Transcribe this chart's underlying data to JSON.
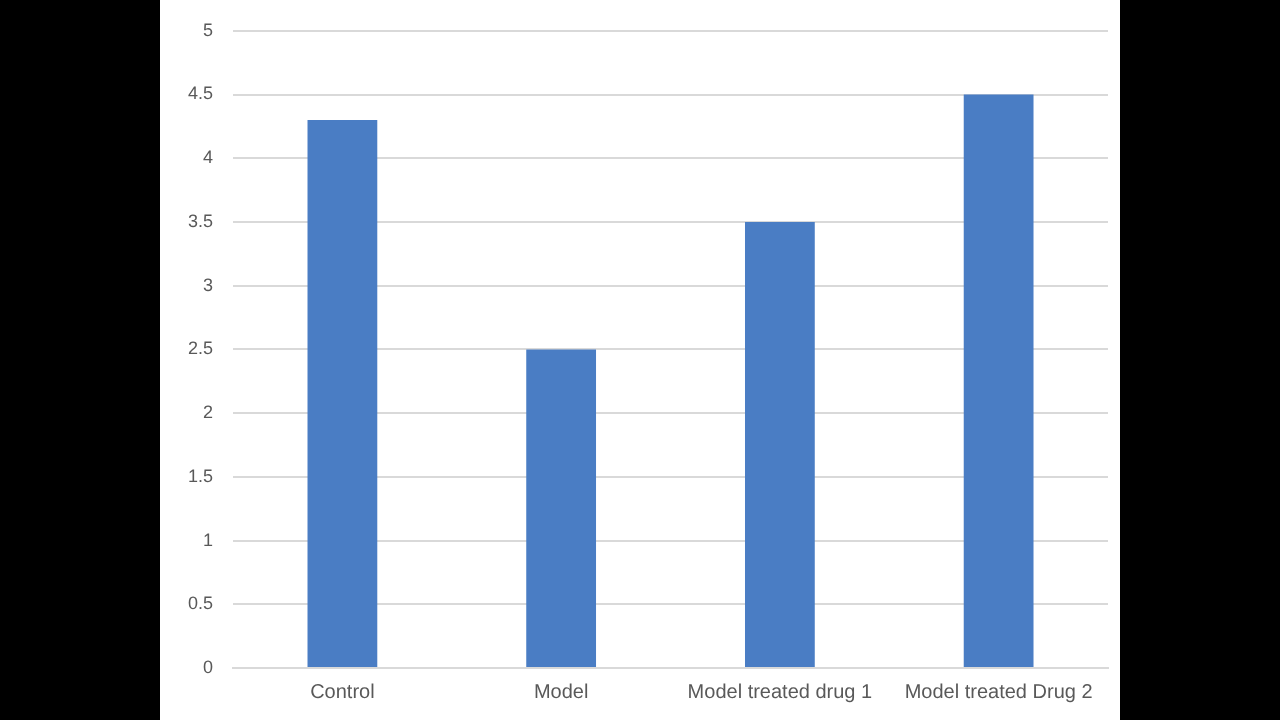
{
  "chart_data": {
    "type": "bar",
    "categories": [
      "Control",
      "Model",
      "Model treated drug 1",
      "Model treated Drug 2"
    ],
    "values": [
      4.3,
      2.5,
      3.5,
      4.5
    ],
    "color": "#4a7dc4",
    "ylim": [
      0,
      5
    ],
    "yticks": [
      0,
      0.5,
      1,
      1.5,
      2,
      2.5,
      3,
      3.5,
      4,
      4.5,
      5
    ],
    "grid": "y",
    "legend": false
  }
}
